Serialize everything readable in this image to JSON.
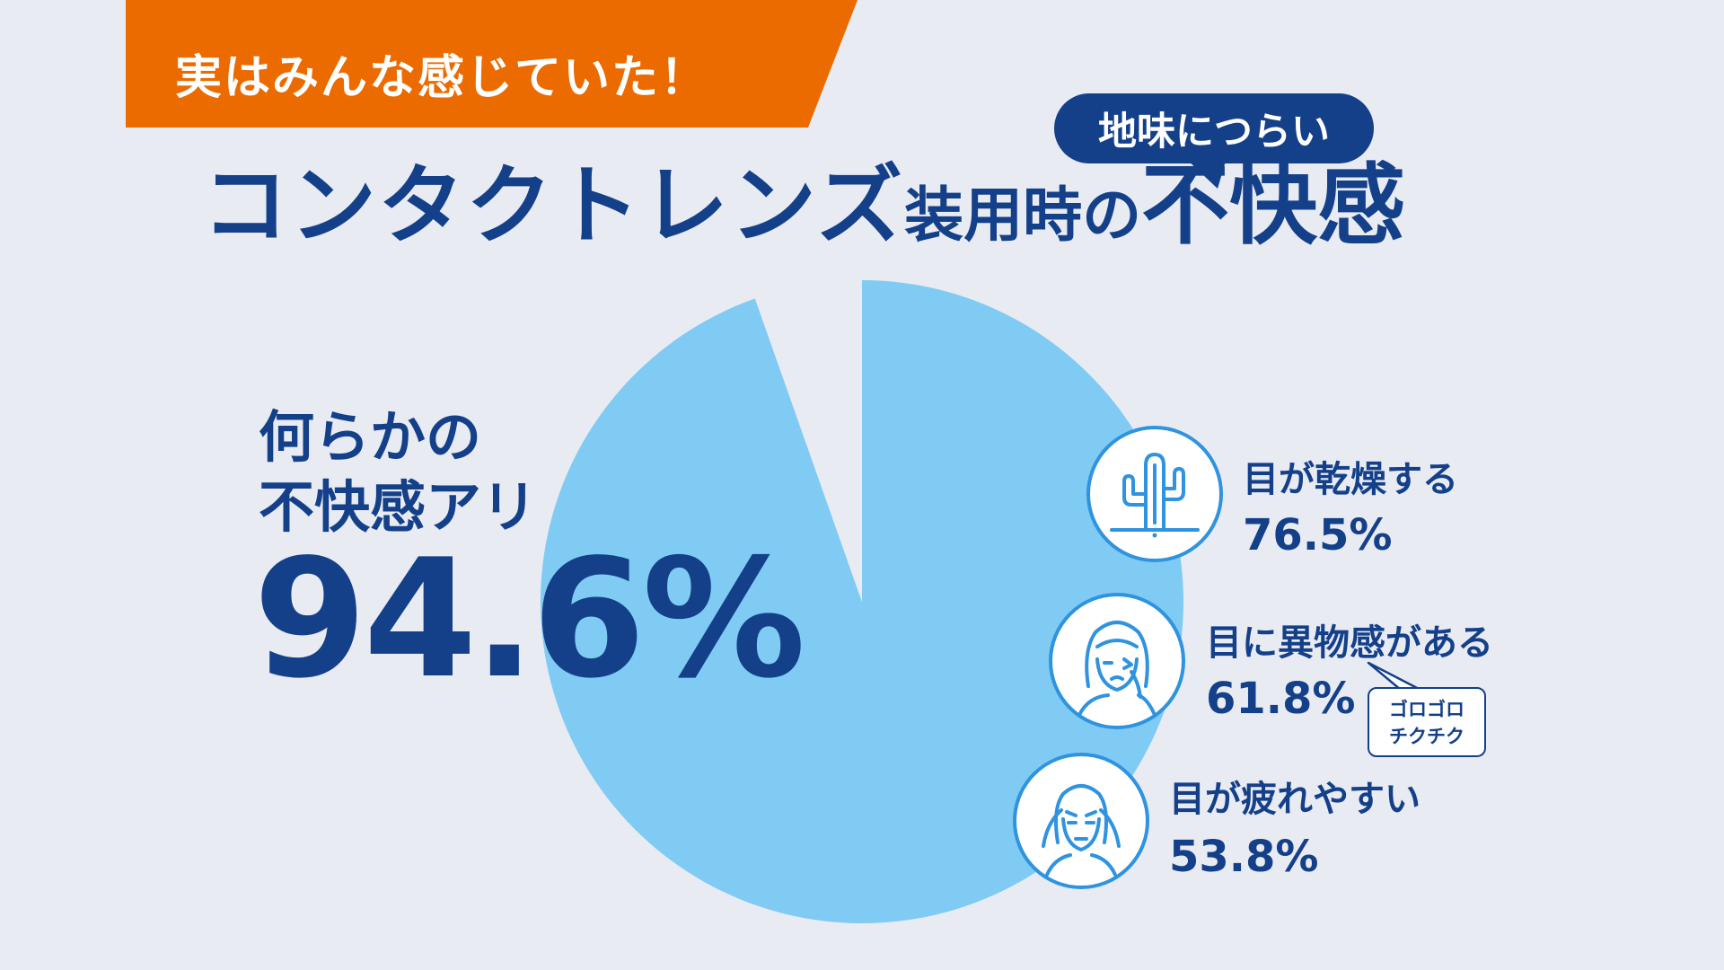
{
  "banner": {
    "text": "実はみんな感じていた！",
    "color": "#ec6b00"
  },
  "title": {
    "main": "コンタクトレンズ",
    "middle": "装用時の",
    "emphasis": "不快感",
    "bubble": "地味につらい",
    "color": "#14408a"
  },
  "chart_data": {
    "type": "pie",
    "slices": [
      {
        "label": "何らかの不快感アリ",
        "value": 94.6,
        "color": "#80cbf3"
      },
      {
        "label": "",
        "value": 5.4,
        "color": "#e9ebf2"
      }
    ],
    "highlight": {
      "label_line1": "何らかの",
      "label_line2": "不快感アリ",
      "value_text": "94.6%"
    },
    "breakdown": [
      {
        "label": "目が乾燥する",
        "value": 76.5,
        "value_text": "76.5%",
        "icon": "cactus-icon"
      },
      {
        "label": "目に異物感がある",
        "value": 61.8,
        "value_text": "61.8%",
        "icon": "irritated-eye-woman-icon"
      },
      {
        "label": "目が疲れやすい",
        "value": 53.8,
        "value_text": "53.8%",
        "icon": "tired-eyes-woman-icon"
      }
    ]
  },
  "note_bubble": {
    "line1": "ゴロゴロ",
    "line2": "チクチク"
  }
}
